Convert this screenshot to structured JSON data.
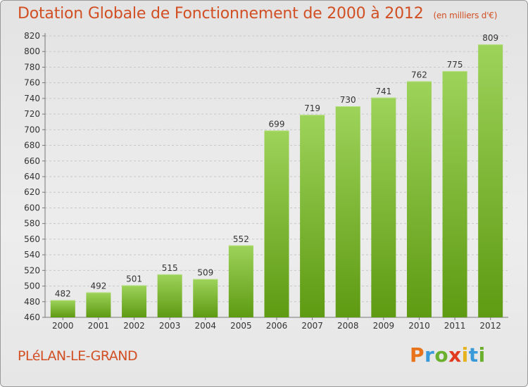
{
  "chart_data": {
    "type": "bar",
    "title": "Dotation Globale de Fonctionnement de 2000 à 2012",
    "subtitle": "(en milliers d'€)",
    "categories": [
      "2000",
      "2001",
      "2002",
      "2003",
      "2004",
      "2005",
      "2006",
      "2007",
      "2008",
      "2009",
      "2010",
      "2011",
      "2012"
    ],
    "values": [
      482,
      492,
      501,
      515,
      509,
      552,
      699,
      719,
      730,
      741,
      762,
      775,
      809
    ],
    "ylim": [
      460,
      820
    ],
    "yticks": [
      460,
      480,
      500,
      520,
      540,
      560,
      580,
      600,
      620,
      640,
      660,
      680,
      700,
      720,
      740,
      760,
      780,
      800,
      820
    ],
    "grid": true,
    "bar_color_top": "#9dd35a",
    "bar_color_bottom": "#5e9a12"
  },
  "location": "PLéLAN-LE-GRAND",
  "logo": {
    "letters": [
      "P",
      "r",
      "o",
      "x",
      "i",
      "t",
      "i"
    ],
    "colors": [
      "#e8731a",
      "#3a9ad9",
      "#6ab02e",
      "#e23a1f",
      "#e6b31e",
      "#3a9ad9",
      "#6ab02e"
    ]
  }
}
